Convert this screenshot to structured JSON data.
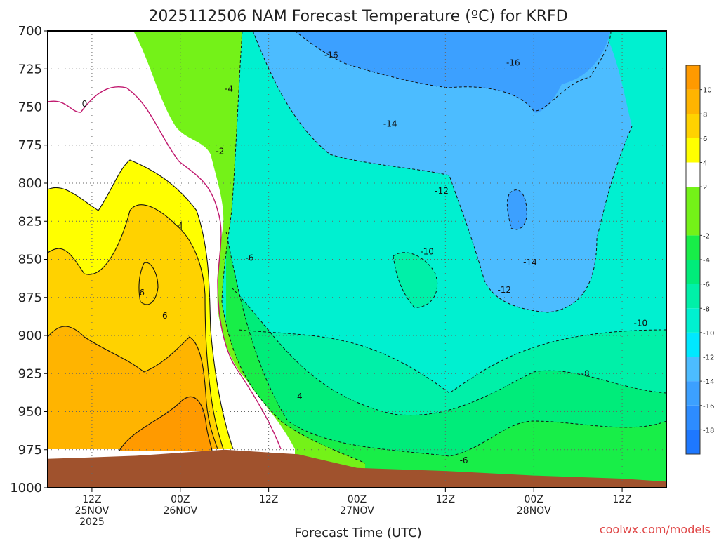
{
  "chart_data": {
    "type": "heatmap",
    "title": "2025112506 NAM Forecast Temperature (ºC) for KRFD",
    "xlabel": "Forecast Time (UTC)",
    "ylabel": "",
    "y_axis": {
      "scale": "pressure",
      "reversed": true,
      "ticks": [
        700,
        725,
        750,
        775,
        800,
        825,
        850,
        875,
        900,
        925,
        950,
        975,
        1000
      ],
      "range": [
        700,
        1000
      ]
    },
    "x_axis": {
      "range_hours": [
        0,
        84
      ],
      "ticks": [
        {
          "hour": 6,
          "lines": [
            "12Z",
            "25NOV",
            "2025"
          ]
        },
        {
          "hour": 18,
          "lines": [
            "00Z",
            "26NOV"
          ]
        },
        {
          "hour": 30,
          "lines": [
            "12Z"
          ]
        },
        {
          "hour": 42,
          "lines": [
            "00Z",
            "27NOV"
          ]
        },
        {
          "hour": 54,
          "lines": [
            "12Z"
          ]
        },
        {
          "hour": 66,
          "lines": [
            "00Z",
            "28NOV"
          ]
        },
        {
          "hour": 78,
          "lines": [
            "12Z"
          ]
        }
      ]
    },
    "colorbar": {
      "levels": [
        -20,
        -18,
        -16,
        -14,
        -12,
        -10,
        -8,
        -6,
        -4,
        -2,
        2,
        4,
        6,
        8,
        10,
        12
      ],
      "labels": [
        -18,
        -16,
        -14,
        -12,
        -10,
        -8,
        -6,
        -4,
        -2,
        2,
        4,
        6,
        8,
        10
      ],
      "colors": [
        "#1e78ff",
        "#2d8cff",
        "#3ca0ff",
        "#4cbcff",
        "#00e8ff",
        "#00f0d0",
        "#00f0a8",
        "#00ec7a",
        "#18ee48",
        "#74f218",
        "#ffffff",
        "#ffff00",
        "#ffd200",
        "#ffb400",
        "#ff9a00"
      ]
    },
    "contour_labels": [
      {
        "text": "0",
        "hour": 5.0,
        "p": 748
      },
      {
        "text": "-4",
        "hour": 24.6,
        "p": 738
      },
      {
        "text": "-2",
        "hour": 23.4,
        "p": 779
      },
      {
        "text": "4",
        "hour": 18.0,
        "p": 828
      },
      {
        "text": "6",
        "hour": 12.8,
        "p": 872
      },
      {
        "text": "6",
        "hour": 15.9,
        "p": 887
      },
      {
        "text": "-6",
        "hour": 27.4,
        "p": 849
      },
      {
        "text": "-4",
        "hour": 34.0,
        "p": 940
      },
      {
        "text": "-6",
        "hour": 56.5,
        "p": 982
      },
      {
        "text": "-16",
        "hour": 38.5,
        "p": 716
      },
      {
        "text": "-16",
        "hour": 63.2,
        "p": 721
      },
      {
        "text": "-14",
        "hour": 46.5,
        "p": 761
      },
      {
        "text": "-12",
        "hour": 53.5,
        "p": 805
      },
      {
        "text": "-10",
        "hour": 51.5,
        "p": 845
      },
      {
        "text": "-14",
        "hour": 65.5,
        "p": 852
      },
      {
        "text": "-12",
        "hour": 62.0,
        "p": 870
      },
      {
        "text": "-10",
        "hour": 80.5,
        "p": 892
      },
      {
        "text": "-8",
        "hour": 73.0,
        "p": 925
      }
    ],
    "ground_pressure_by_hour": [
      [
        0,
        981
      ],
      [
        12,
        979
      ],
      [
        24,
        975
      ],
      [
        34,
        978
      ],
      [
        42,
        987
      ],
      [
        54,
        989
      ],
      [
        66,
        992
      ],
      [
        78,
        994
      ],
      [
        84,
        996
      ]
    ]
  },
  "footer": {
    "credit": "coolwx.com/models"
  }
}
